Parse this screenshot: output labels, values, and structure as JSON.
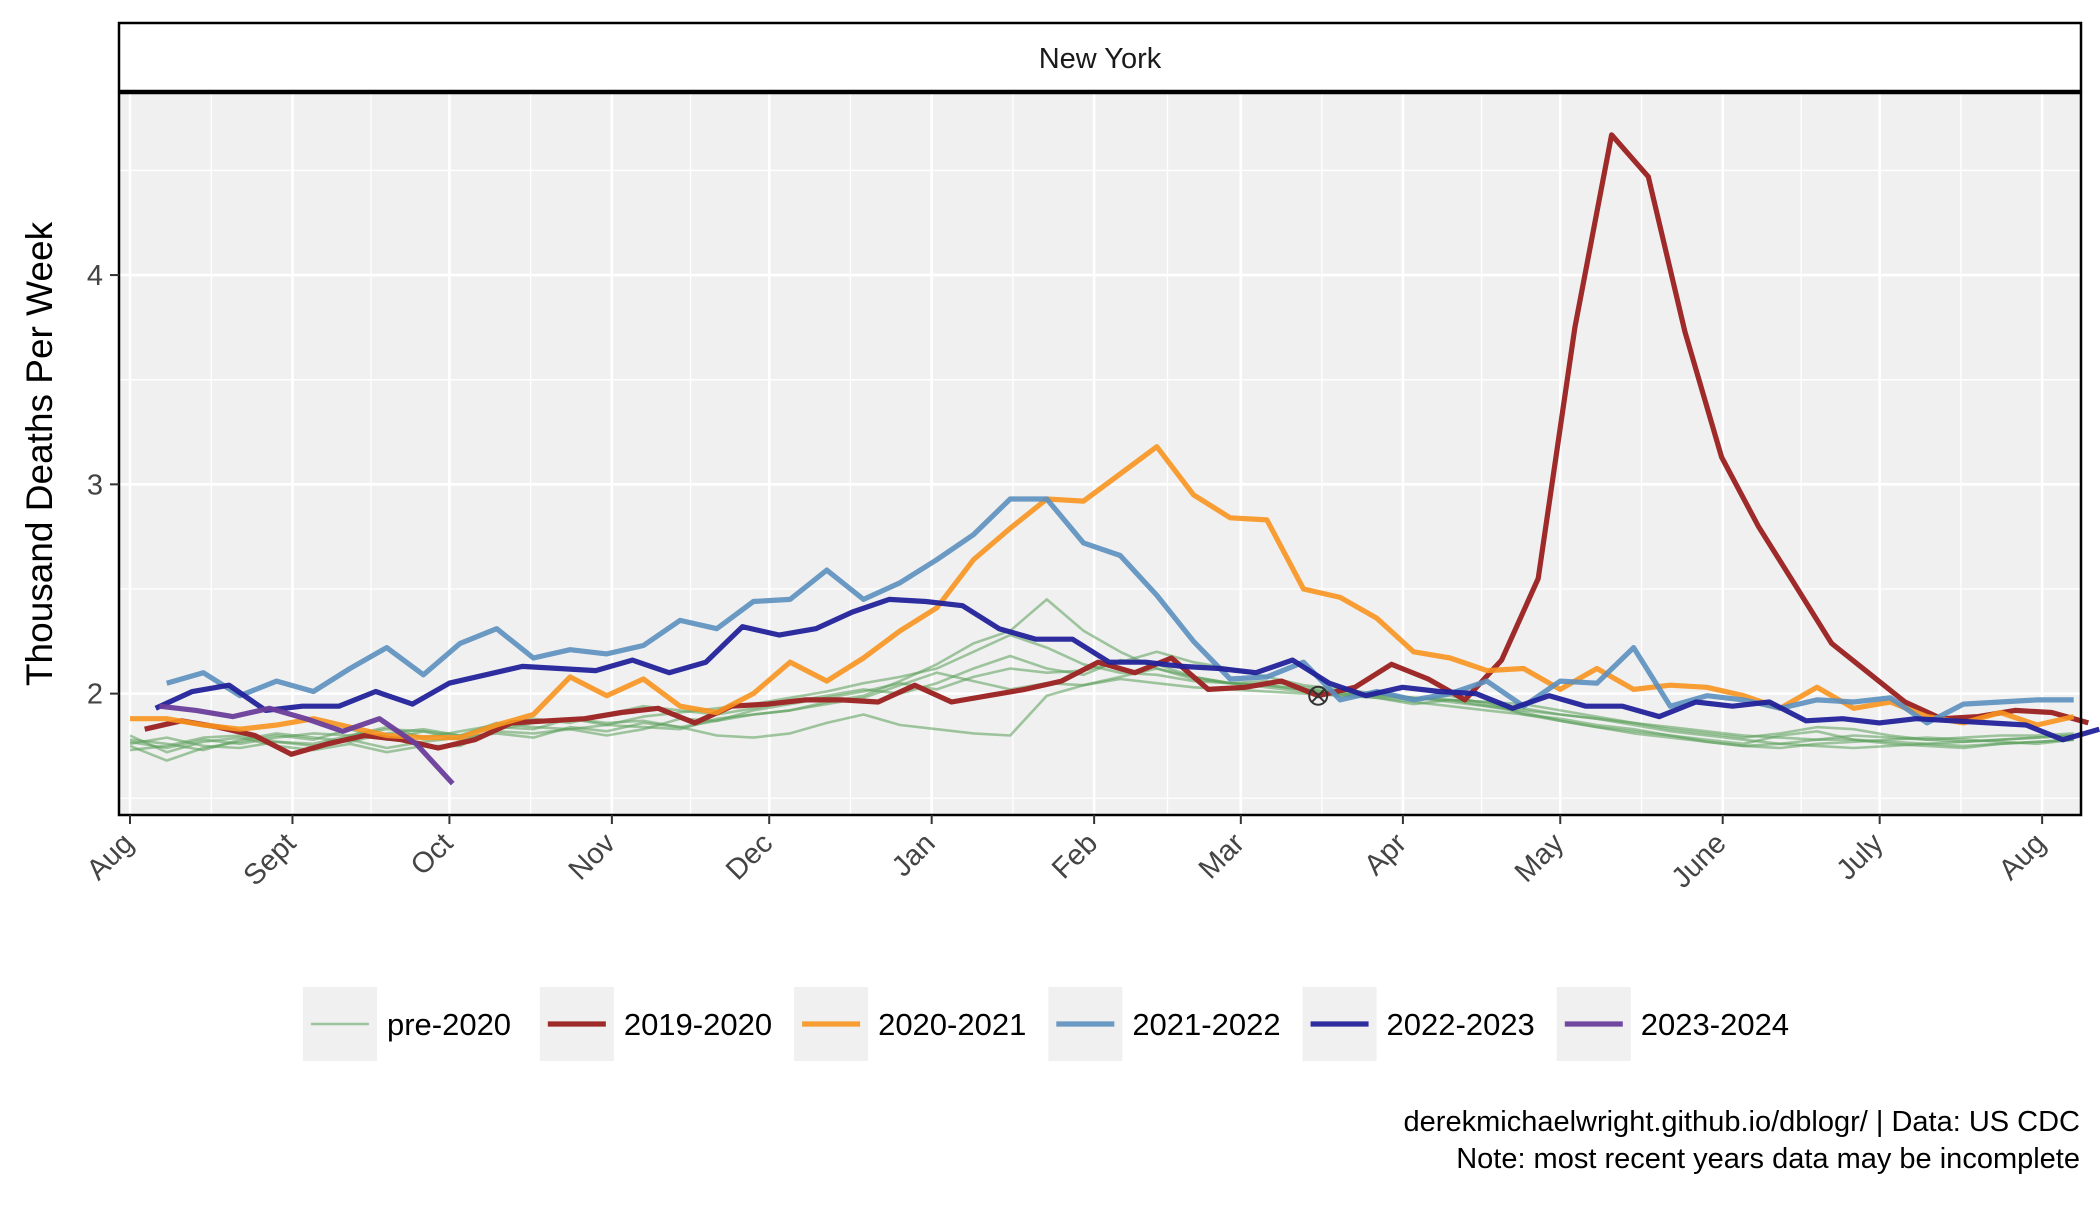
{
  "chart_data": {
    "type": "line",
    "facet_title": "New York",
    "xlabel": "",
    "ylabel": "Thousand Deaths Per Week",
    "x_unit": "week of season (0 = Aug 1)",
    "xlim": [
      -0.3,
      53.2
    ],
    "ylim": [
      1.42,
      4.87
    ],
    "x_ticks": [
      {
        "label": "Aug",
        "x": 0
      },
      {
        "label": "Sept",
        "x": 4.43
      },
      {
        "label": "Oct",
        "x": 8.71
      },
      {
        "label": "Nov",
        "x": 13.14
      },
      {
        "label": "Dec",
        "x": 17.43
      },
      {
        "label": "Jan",
        "x": 21.86
      },
      {
        "label": "Feb",
        "x": 26.29
      },
      {
        "label": "Mar",
        "x": 30.29
      },
      {
        "label": "Apr",
        "x": 34.71
      },
      {
        "label": "May",
        "x": 39.0
      },
      {
        "label": "June",
        "x": 43.43
      },
      {
        "label": "July",
        "x": 47.71
      },
      {
        "label": "Aug",
        "x": 52.14
      }
    ],
    "y_ticks": [
      2,
      3,
      4
    ],
    "grid": true,
    "legend_position": "bottom",
    "marker": {
      "x": 32.4,
      "y": 1.99,
      "shape": "circle-x"
    },
    "series": [
      {
        "name": "pre-2020",
        "color": "#5a9e5a",
        "opacity": 0.55,
        "width": 2.6,
        "group": "pre",
        "x_start": 0,
        "values": [
          1.8,
          1.72,
          1.77,
          1.79,
          1.75,
          1.73,
          1.76,
          1.72,
          1.75,
          1.75,
          1.83,
          1.86,
          1.88,
          1.86,
          1.87,
          1.84,
          1.8,
          1.79,
          1.81,
          1.86,
          1.9,
          1.85,
          1.83,
          1.81,
          1.8,
          1.99,
          2.04,
          2.07,
          2.05,
          2.03,
          2.02,
          2.01,
          2.0,
          1.99,
          2.0,
          1.98,
          1.96,
          1.94,
          1.92,
          1.9,
          1.88,
          1.85,
          1.82,
          1.8,
          1.78,
          1.76,
          1.75,
          1.74,
          1.75,
          1.76,
          1.77,
          1.78,
          1.79,
          1.8
        ]
      },
      {
        "name": "pre-2020",
        "color": "#5a9e5a",
        "opacity": 0.55,
        "width": 2.6,
        "group": "pre",
        "x_start": 0,
        "values": [
          1.75,
          1.68,
          1.74,
          1.77,
          1.8,
          1.78,
          1.83,
          1.78,
          1.82,
          1.8,
          1.86,
          1.84,
          1.83,
          1.85,
          1.84,
          1.83,
          1.88,
          1.9,
          1.92,
          1.95,
          1.98,
          2.04,
          2.1,
          2.06,
          2.02,
          2.05,
          2.04,
          2.08,
          2.12,
          2.07,
          2.05,
          2.03,
          2.01,
          1.99,
          1.98,
          1.95,
          1.97,
          1.96,
          1.9,
          1.88,
          1.85,
          1.83,
          1.8,
          1.78,
          1.76,
          1.8,
          1.82,
          1.78,
          1.76,
          1.75,
          1.74,
          1.76,
          1.77,
          1.78
        ]
      },
      {
        "name": "pre-2020",
        "color": "#5a9e5a",
        "opacity": 0.55,
        "width": 2.6,
        "group": "pre",
        "x_start": 0,
        "values": [
          1.73,
          1.75,
          1.79,
          1.8,
          1.77,
          1.76,
          1.8,
          1.83,
          1.82,
          1.78,
          1.82,
          1.81,
          1.83,
          1.8,
          1.83,
          1.88,
          1.87,
          1.92,
          1.95,
          1.98,
          2.01,
          2.05,
          2.02,
          2.08,
          2.12,
          2.1,
          2.11,
          2.15,
          2.2,
          2.15,
          2.12,
          2.08,
          2.04,
          2.02,
          2.0,
          1.98,
          1.97,
          1.94,
          1.91,
          1.87,
          1.84,
          1.82,
          1.8,
          1.77,
          1.75,
          1.76,
          1.78,
          1.8,
          1.79,
          1.78,
          1.77,
          1.78,
          1.79,
          1.8
        ]
      },
      {
        "name": "pre-2020",
        "color": "#5a9e5a",
        "opacity": 0.55,
        "width": 2.6,
        "group": "pre",
        "x_start": 0,
        "values": [
          1.77,
          1.74,
          1.78,
          1.76,
          1.79,
          1.81,
          1.8,
          1.84,
          1.79,
          1.82,
          1.85,
          1.88,
          1.86,
          1.9,
          1.94,
          1.92,
          1.9,
          1.93,
          1.96,
          1.99,
          2.02,
          2.0,
          2.05,
          2.12,
          2.18,
          2.12,
          2.09,
          2.16,
          2.14,
          2.08,
          2.05,
          2.06,
          2.03,
          2.01,
          1.99,
          1.97,
          1.99,
          1.95,
          1.93,
          1.9,
          1.88,
          1.86,
          1.83,
          1.81,
          1.79,
          1.81,
          1.84,
          1.83,
          1.8,
          1.78,
          1.79,
          1.8,
          1.8,
          1.81
        ]
      },
      {
        "name": "pre-2020",
        "color": "#5a9e5a",
        "opacity": 0.55,
        "width": 2.6,
        "group": "pre",
        "x_start": 0,
        "values": [
          1.78,
          1.76,
          1.73,
          1.78,
          1.81,
          1.79,
          1.77,
          1.81,
          1.83,
          1.8,
          1.84,
          1.83,
          1.88,
          1.85,
          1.89,
          1.91,
          1.93,
          1.95,
          1.98,
          2.01,
          2.05,
          2.08,
          2.12,
          2.2,
          2.28,
          2.22,
          2.14,
          2.1,
          2.09,
          2.06,
          2.05,
          2.04,
          2.02,
          2.0,
          1.99,
          1.98,
          1.97,
          1.96,
          1.95,
          1.92,
          1.89,
          1.86,
          1.84,
          1.82,
          1.8,
          1.79,
          1.78,
          1.78,
          1.77,
          1.76,
          1.75,
          1.76,
          1.77,
          1.78
        ]
      },
      {
        "name": "pre-2020",
        "color": "#5a9e5a",
        "opacity": 0.55,
        "width": 2.6,
        "group": "pre",
        "x_start": 0,
        "values": [
          1.76,
          1.79,
          1.75,
          1.74,
          1.77,
          1.75,
          1.78,
          1.74,
          1.77,
          1.79,
          1.81,
          1.79,
          1.84,
          1.82,
          1.86,
          1.84,
          1.87,
          1.9,
          1.92,
          1.96,
          1.99,
          2.06,
          2.14,
          2.24,
          2.3,
          2.45,
          2.3,
          2.2,
          2.12,
          2.08,
          2.05,
          2.04,
          2.02,
          2.0,
          1.98,
          1.96,
          1.94,
          1.92,
          1.9,
          1.87,
          1.84,
          1.81,
          1.79,
          1.77,
          1.75,
          1.74,
          1.76,
          1.77,
          1.78,
          1.79,
          1.78,
          1.77,
          1.76,
          1.78
        ]
      },
      {
        "name": "2019-2020",
        "color": "#9e2a2a",
        "opacity": 1,
        "width": 5.2,
        "group": "main",
        "x_start": 0.4,
        "values": [
          1.83,
          1.87,
          1.84,
          1.8,
          1.71,
          1.76,
          1.8,
          1.78,
          1.74,
          1.78,
          1.86,
          1.87,
          1.88,
          1.91,
          1.93,
          1.86,
          1.94,
          1.95,
          1.97,
          1.97,
          1.96,
          2.04,
          1.96,
          1.99,
          2.02,
          2.06,
          2.15,
          2.1,
          2.17,
          2.02,
          2.03,
          2.06,
          1.99,
          2.03,
          2.14,
          2.07,
          1.97,
          2.16,
          2.55,
          3.75,
          4.67,
          4.47,
          3.73,
          3.13,
          2.8,
          2.52,
          2.24,
          2.1,
          1.96,
          1.88,
          1.89,
          1.92,
          1.91,
          1.86
        ]
      },
      {
        "name": "2020-2021",
        "color": "#f7931e",
        "opacity": 0.9,
        "width": 5.2,
        "group": "main",
        "x_start": 0,
        "values": [
          1.88,
          1.88,
          1.85,
          1.83,
          1.85,
          1.88,
          1.84,
          1.8,
          1.79,
          1.79,
          1.85,
          1.9,
          2.08,
          1.99,
          2.07,
          1.94,
          1.91,
          2.0,
          2.15,
          2.06,
          2.17,
          2.3,
          2.41,
          2.64,
          2.79,
          2.93,
          2.92,
          3.05,
          3.18,
          2.95,
          2.84,
          2.83,
          2.5,
          2.46,
          2.36,
          2.2,
          2.17,
          2.11,
          2.12,
          2.02,
          2.12,
          2.02,
          2.04,
          2.03,
          1.99,
          1.93,
          2.03,
          1.93,
          1.96,
          1.89,
          1.86,
          1.91,
          1.85,
          1.89
        ]
      },
      {
        "name": "2021-2022",
        "color": "#5b8fbe",
        "opacity": 0.9,
        "width": 5.2,
        "group": "main",
        "x_start": 1,
        "values": [
          2.05,
          2.1,
          1.99,
          2.06,
          2.01,
          2.12,
          2.22,
          2.09,
          2.24,
          2.31,
          2.17,
          2.21,
          2.19,
          2.23,
          2.35,
          2.31,
          2.44,
          2.45,
          2.59,
          2.45,
          2.53,
          2.64,
          2.76,
          2.93,
          2.93,
          2.72,
          2.66,
          2.47,
          2.25,
          2.07,
          2.08,
          2.15,
          1.97,
          2.01,
          1.97,
          2.0,
          2.06,
          1.94,
          2.06,
          2.05,
          2.22,
          1.94,
          1.99,
          1.97,
          1.93,
          1.97,
          1.96,
          1.98,
          1.86,
          1.95,
          1.96,
          1.97,
          1.97
        ]
      },
      {
        "name": "2022-2023",
        "color": "#22229a",
        "opacity": 0.95,
        "width": 5.2,
        "group": "main",
        "x_start": 0.7,
        "values": [
          1.93,
          2.01,
          2.04,
          1.92,
          1.94,
          1.94,
          2.01,
          1.95,
          2.05,
          2.09,
          2.13,
          2.12,
          2.11,
          2.16,
          2.1,
          2.15,
          2.32,
          2.28,
          2.31,
          2.39,
          2.45,
          2.44,
          2.42,
          2.31,
          2.26,
          2.26,
          2.15,
          2.15,
          2.13,
          2.12,
          2.1,
          2.16,
          2.05,
          1.99,
          2.03,
          2.01,
          2.0,
          1.93,
          1.99,
          1.94,
          1.94,
          1.89,
          1.96,
          1.94,
          1.96,
          1.87,
          1.88,
          1.86,
          1.88,
          1.87,
          1.86,
          1.85,
          1.78,
          1.83
        ]
      },
      {
        "name": "2023-2024",
        "color": "#6a3d9a",
        "opacity": 0.95,
        "width": 5.2,
        "group": "main",
        "x_start": 0.8,
        "values": [
          1.94,
          1.92,
          1.89,
          1.93,
          1.88,
          1.82,
          1.88,
          1.76,
          1.57
        ]
      }
    ]
  },
  "legend": {
    "items": [
      {
        "label": "pre-2020",
        "color": "#5a9e5a",
        "width": 2.6,
        "opacity": 0.55
      },
      {
        "label": "2019-2020",
        "color": "#9e2a2a",
        "width": 5.2,
        "opacity": 1
      },
      {
        "label": "2020-2021",
        "color": "#f7931e",
        "width": 5.2,
        "opacity": 0.9
      },
      {
        "label": "2021-2022",
        "color": "#5b8fbe",
        "width": 5.2,
        "opacity": 0.9
      },
      {
        "label": "2022-2023",
        "color": "#22229a",
        "width": 5.2,
        "opacity": 0.95
      },
      {
        "label": "2023-2024",
        "color": "#6a3d9a",
        "width": 5.2,
        "opacity": 0.95
      }
    ]
  },
  "caption": {
    "line1": "derekmichaelwright.github.io/dblogr/ | Data: US CDC",
    "line2": "Note: most recent years data may be incomplete"
  },
  "colors": {
    "panel_background": "#f0f0f0",
    "grid": "#ffffff",
    "strip_background": "#ffffff",
    "text": "#000000",
    "tick_text": "#444444"
  }
}
